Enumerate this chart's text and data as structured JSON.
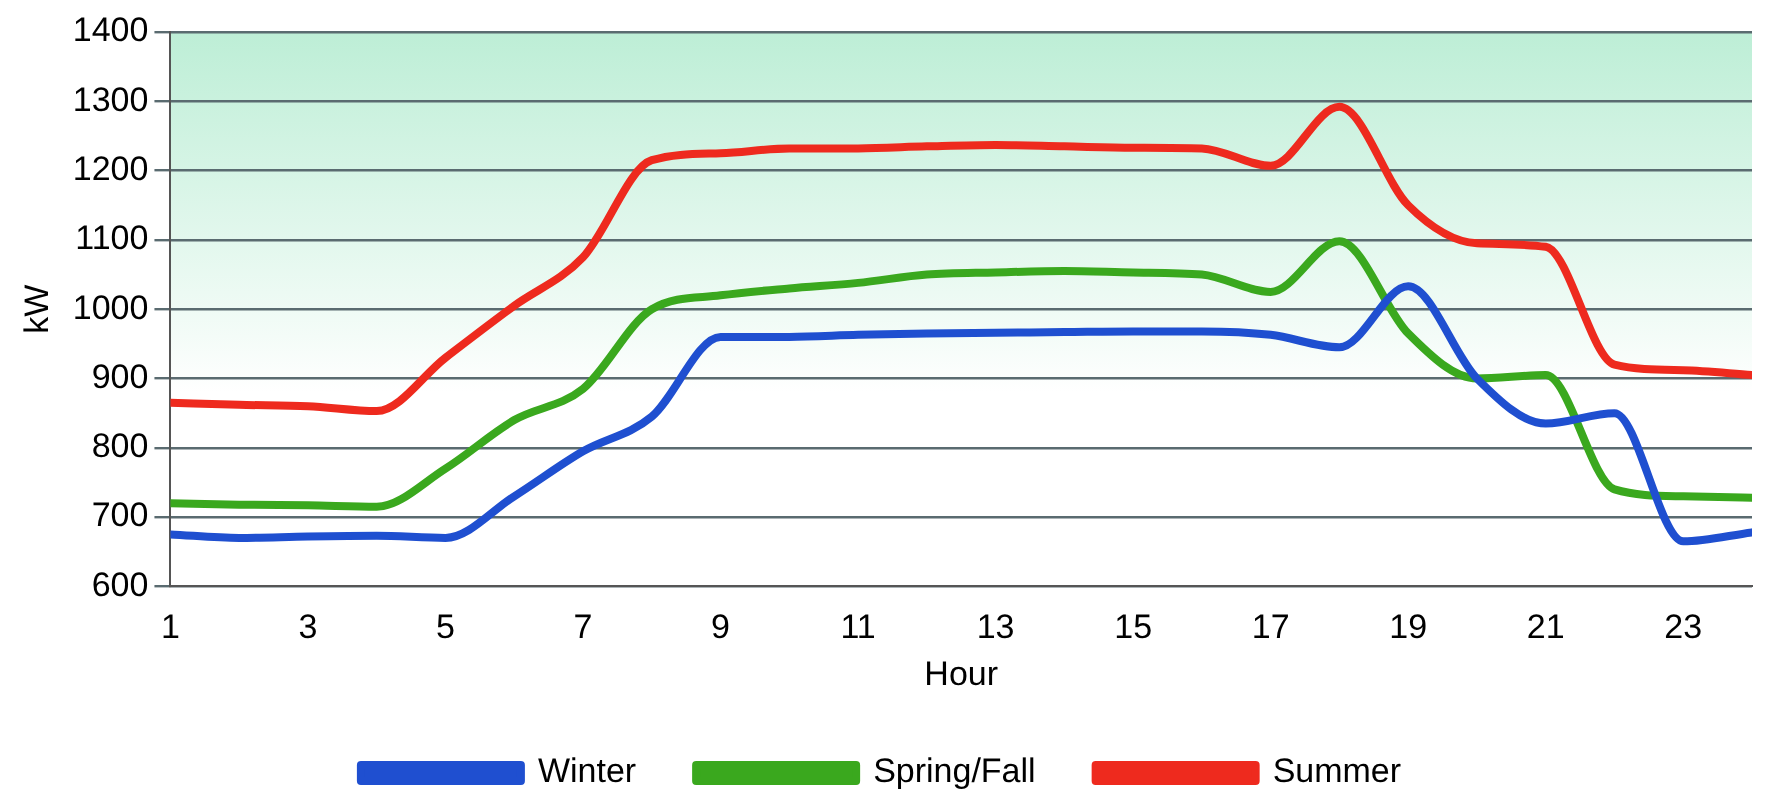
{
  "chart_data": {
    "type": "line",
    "xlabel": "Hour",
    "ylabel": "kW",
    "x": [
      1,
      2,
      3,
      4,
      5,
      6,
      7,
      8,
      9,
      10,
      11,
      12,
      13,
      14,
      15,
      16,
      17,
      18,
      19,
      20,
      21,
      22,
      23,
      24
    ],
    "xlim": [
      1,
      24
    ],
    "xticks": [
      1,
      3,
      5,
      7,
      9,
      11,
      13,
      15,
      17,
      19,
      21,
      23
    ],
    "ylim": [
      600,
      1400
    ],
    "yticks": [
      600,
      700,
      800,
      900,
      1000,
      1100,
      1200,
      1300,
      1400
    ],
    "grid": "y",
    "legend": "bottom",
    "marker": "none",
    "line_style": "solid",
    "series": [
      {
        "name": "Winter",
        "color": "#1f4fd0",
        "values": [
          675,
          670,
          672,
          673,
          670,
          730,
          795,
          845,
          960,
          960,
          963,
          965,
          966,
          967,
          968,
          968,
          963,
          945,
          1033,
          900,
          835,
          850,
          665,
          678
        ]
      },
      {
        "name": "Spring/Fall",
        "color": "#3aa81e",
        "values": [
          720,
          718,
          717,
          715,
          770,
          840,
          885,
          1000,
          1020,
          1030,
          1038,
          1050,
          1053,
          1055,
          1053,
          1050,
          1025,
          1098,
          965,
          900,
          905,
          740,
          730,
          728
        ]
      },
      {
        "name": "Summer",
        "color": "#ee2a1e",
        "values": [
          865,
          862,
          860,
          853,
          930,
          1005,
          1075,
          1215,
          1225,
          1232,
          1232,
          1235,
          1237,
          1235,
          1233,
          1232,
          1207,
          1292,
          1150,
          1095,
          1090,
          920,
          912,
          905
        ]
      }
    ]
  }
}
